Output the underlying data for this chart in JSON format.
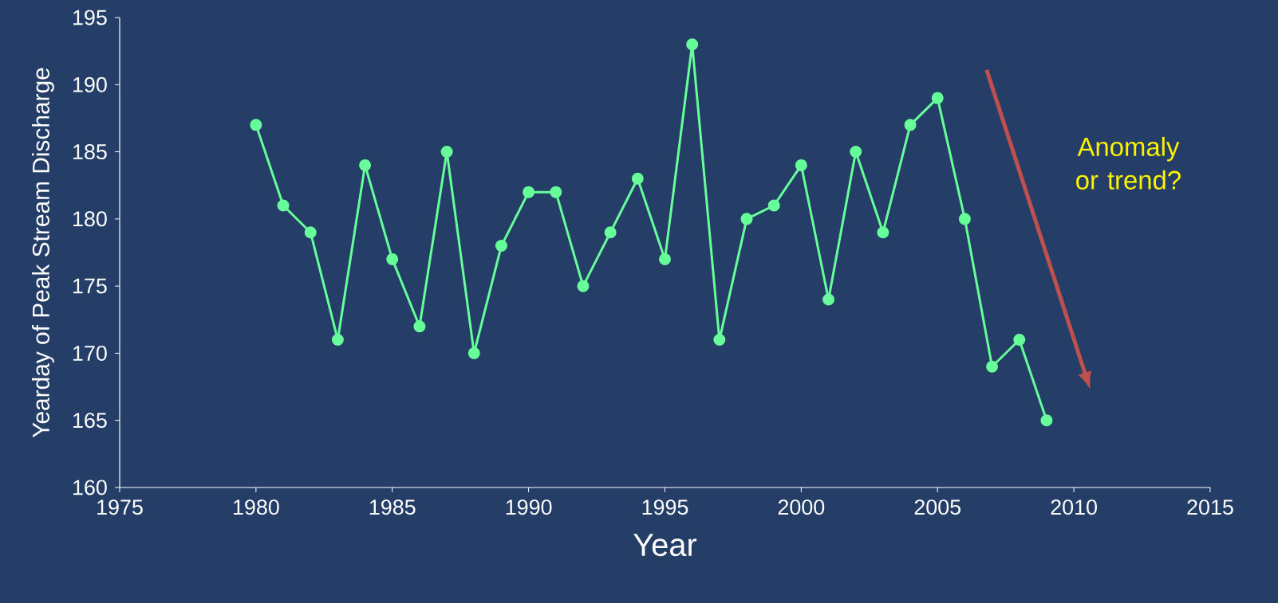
{
  "chart_data": {
    "type": "line",
    "xlabel": "Year",
    "ylabel": "Yearday of Peak Stream Discharge",
    "x": [
      1980,
      1981,
      1982,
      1983,
      1984,
      1985,
      1986,
      1987,
      1988,
      1989,
      1990,
      1991,
      1992,
      1993,
      1994,
      1995,
      1996,
      1997,
      1998,
      1999,
      2000,
      2001,
      2002,
      2003,
      2004,
      2005,
      2006,
      2007,
      2008,
      2009
    ],
    "series": [
      {
        "color": "#66ff99",
        "values": [
          187,
          181,
          179,
          171,
          184,
          177,
          172,
          185,
          170,
          178,
          182,
          182,
          175,
          179,
          183,
          177,
          193,
          171,
          180,
          181,
          184,
          174,
          185,
          179,
          187,
          189,
          180,
          169,
          171,
          165
        ]
      }
    ],
    "xlim": [
      1975,
      2015
    ],
    "xticks": [
      1975,
      1980,
      1985,
      1990,
      1995,
      2000,
      2005,
      2010,
      2015
    ],
    "ylim": [
      160,
      195
    ],
    "yticks": [
      160,
      165,
      170,
      175,
      180,
      185,
      190,
      195
    ],
    "annotations": [
      "Anomaly or trend?"
    ],
    "marker": "circle",
    "line_style": "solid"
  }
}
